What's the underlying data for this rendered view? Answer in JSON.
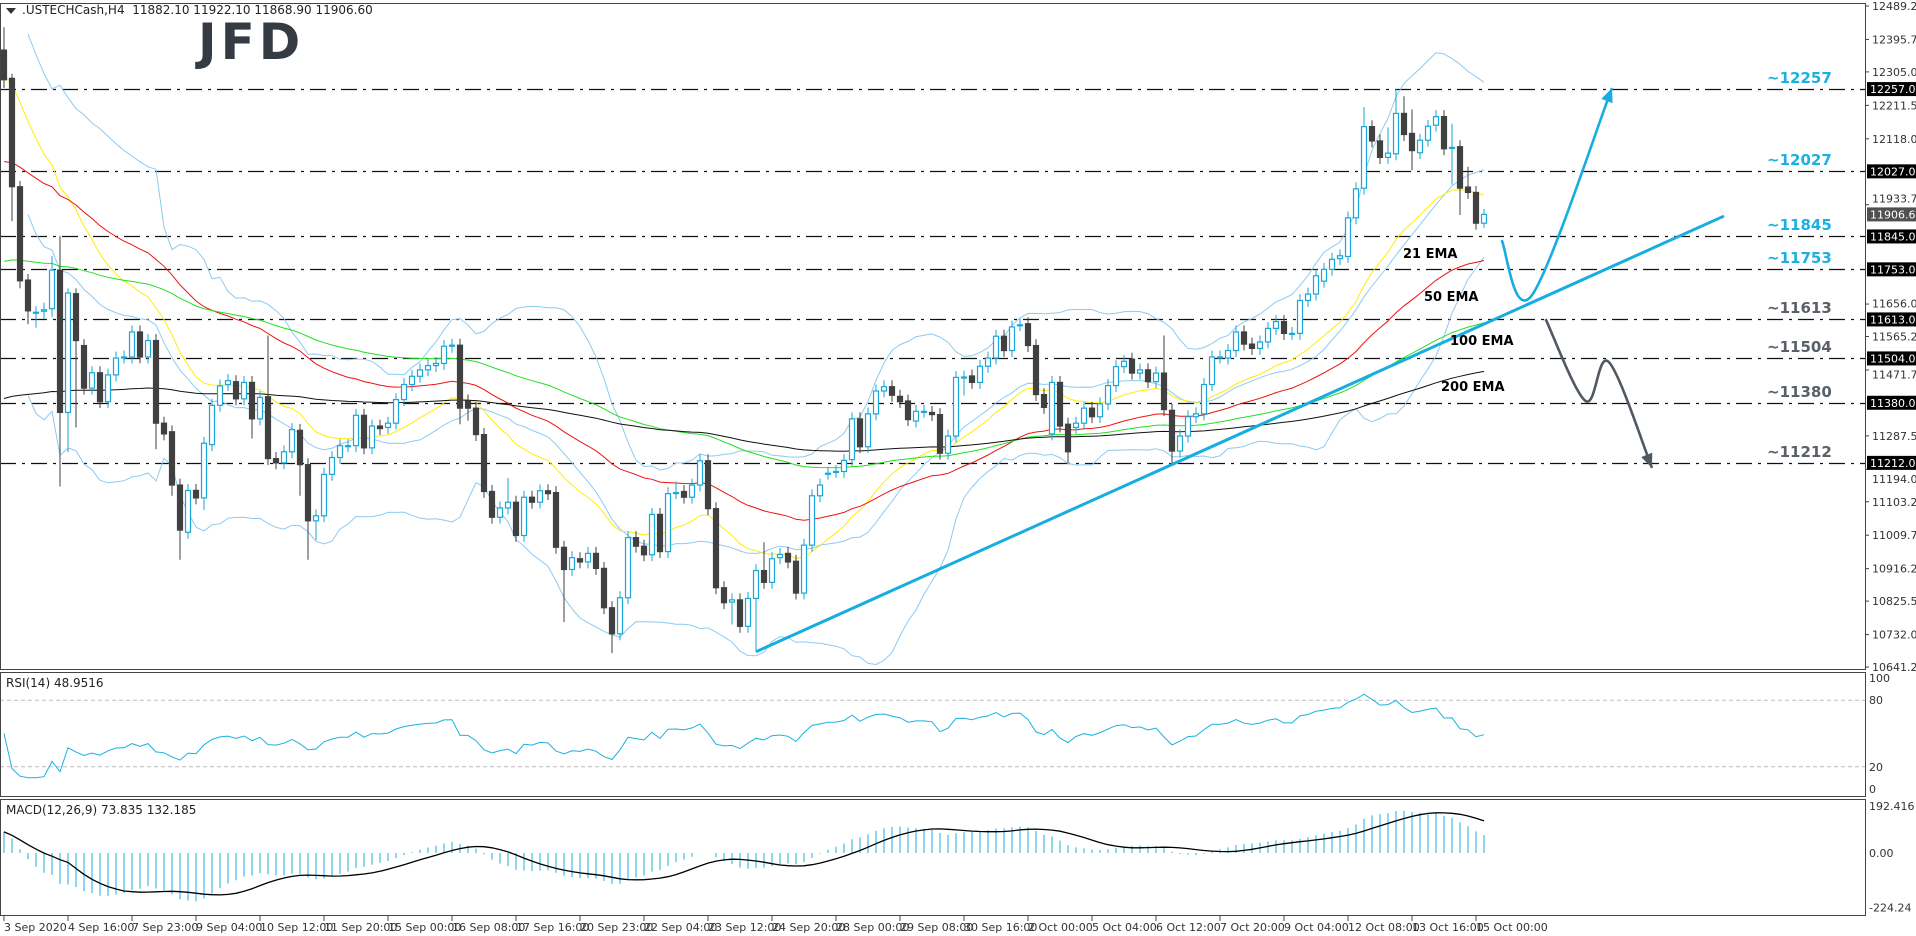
{
  "header": {
    "symbol": ".USTECHCash,H4",
    "ohlc": "11882.10 11922.10 11868.90 11906.60"
  },
  "logo": "JFD",
  "colors": {
    "bull": "#1aa6d8",
    "bear": "#404040",
    "bands": "#8ccbf2",
    "trend": "#17ade0",
    "bearish_path": "#505862",
    "ema21": "#ffee00",
    "ema50": "#ee1111",
    "ema100": "#22e022",
    "ema200": "#111111"
  },
  "levels": [
    {
      "value": 12257,
      "label": "~12257",
      "axis_label": "12257.00",
      "color": "#1ab0e0"
    },
    {
      "value": 12027,
      "label": "~12027",
      "axis_label": "12027.00",
      "color": "#1ab0e0"
    },
    {
      "value": 11845,
      "label": "~11845",
      "axis_label": "11845.00",
      "color": "#1ab0e0"
    },
    {
      "value": 11753,
      "label": "~11753",
      "axis_label": "11753.00",
      "color": "#1ab0e0"
    },
    {
      "value": 11613,
      "label": "~11613",
      "axis_label": "11613.00",
      "color": "#5a6068"
    },
    {
      "value": 11504,
      "label": "~11504",
      "axis_label": "11504.00",
      "color": "#5a6068"
    },
    {
      "value": 11380,
      "label": "~11380",
      "axis_label": "11380.00",
      "color": "#5a6068"
    },
    {
      "value": 11212,
      "label": "~11212",
      "axis_label": "11212.00",
      "color": "#5a6068"
    }
  ],
  "current_price": {
    "value": 11906.6,
    "label": "11906.60"
  },
  "ema_labels": [
    {
      "label": "21 EMA",
      "color": "#f7c600"
    },
    {
      "label": "50 EMA",
      "color": "#e81010"
    },
    {
      "label": "100 EMA",
      "color": "#22e022"
    },
    {
      "label": "200 EMA",
      "color": "#111111"
    }
  ],
  "price_axis_ticks": [
    "12489.25",
    "12395.75",
    "12305.00",
    "12211.50",
    "12118.00",
    "11933.75",
    "11656.00",
    "11565.25",
    "11471.75",
    "11287.50",
    "11194.00",
    "11103.25",
    "11009.75",
    "10916.25",
    "10825.50",
    "10732.00",
    "10641.25"
  ],
  "time_axis": [
    "3 Sep 2020",
    "4 Sep 16:00",
    "7 Sep 23:00",
    "9 Sep 04:00",
    "10 Sep 12:00",
    "11 Sep 20:00",
    "15 Sep 00:00",
    "16 Sep 08:00",
    "17 Sep 16:00",
    "20 Sep 23:00",
    "22 Sep 04:00",
    "23 Sep 12:00",
    "24 Sep 20:00",
    "28 Sep 00:00",
    "29 Sep 08:00",
    "30 Sep 16:00",
    "2 Oct 00:00",
    "5 Oct 04:00",
    "6 Oct 12:00",
    "7 Oct 20:00",
    "9 Oct 04:00",
    "12 Oct 08:00",
    "13 Oct 16:00",
    "15 Oct 00:00"
  ],
  "rsi": {
    "label": "RSI(14) 48.9516",
    "ticks": [
      "100",
      "80",
      "20",
      "0"
    ],
    "levels": [
      80,
      20
    ]
  },
  "macd": {
    "label": "MACD(12,26,9) 73.835 132.185",
    "ticks": [
      "192.416",
      "0.00",
      "-224.24"
    ]
  },
  "chart_data": {
    "type": "candlestick",
    "timeframe": "H4",
    "ylim": [
      10641.25,
      12489.25
    ],
    "grid": false,
    "indicators": [
      "EMA 21",
      "EMA 50",
      "EMA 100",
      "EMA 200",
      "Bollinger Bands",
      "RSI(14)",
      "MACD(12,26,9)"
    ],
    "trendline": {
      "from": {
        "bar": 94,
        "price": 10684
      },
      "to": {
        "bar": 215,
        "price": 11902
      }
    },
    "scenario_up": [
      {
        "bar": 187.2,
        "price": 11835
      },
      {
        "bar": 191,
        "price": 11681
      },
      {
        "bar": 201,
        "price": 12260
      }
    ],
    "scenario_down": [
      {
        "bar": 192.7,
        "price": 11614
      },
      {
        "bar": 197.7,
        "price": 11385
      },
      {
        "bar": 200.6,
        "price": 11494
      },
      {
        "bar": 206,
        "price": 11198
      }
    ],
    "ohlc": [
      [
        12366,
        12430,
        12260,
        12283
      ],
      [
        12287,
        12300,
        11888,
        11984
      ],
      [
        11984,
        12000,
        11700,
        11721
      ],
      [
        11723,
        11740,
        11600,
        11637
      ],
      [
        11633,
        11650,
        11590,
        11633
      ],
      [
        11636,
        11660,
        11615,
        11640
      ],
      [
        11643,
        11790,
        11620,
        11751
      ],
      [
        11751,
        11846,
        11146,
        11353
      ],
      [
        11353,
        11700,
        11242,
        11687
      ],
      [
        11685,
        11700,
        11311,
        11554
      ],
      [
        11540,
        11558,
        11403,
        11421
      ],
      [
        11421,
        11482,
        11403,
        11464
      ],
      [
        11464,
        11482,
        11365,
        11383
      ],
      [
        11383,
        11476,
        11365,
        11458
      ],
      [
        11458,
        11523,
        11440,
        11505
      ],
      [
        11508,
        11526,
        11490,
        11508
      ],
      [
        11508,
        11596,
        11490,
        11578
      ],
      [
        11578,
        11596,
        11490,
        11508
      ],
      [
        11508,
        11572,
        11490,
        11554
      ],
      [
        11554,
        11572,
        11250,
        11323
      ],
      [
        11323,
        11341,
        11275,
        11293
      ],
      [
        11299,
        11317,
        11120,
        11150
      ],
      [
        11150,
        11168,
        10941,
        11024
      ],
      [
        11018,
        11153,
        11000,
        11135
      ],
      [
        11135,
        11153,
        11096,
        11114
      ],
      [
        11114,
        11285,
        11080,
        11267
      ],
      [
        11263,
        11391,
        11245,
        11373
      ],
      [
        11373,
        11445,
        11355,
        11427
      ],
      [
        11431,
        11460,
        11413,
        11442
      ],
      [
        11439,
        11457,
        11373,
        11391
      ],
      [
        11391,
        11455,
        11373,
        11437
      ],
      [
        11437,
        11455,
        11280,
        11335
      ],
      [
        11335,
        11413,
        11317,
        11395
      ],
      [
        11397,
        11568,
        11206,
        11224
      ],
      [
        11224,
        11242,
        11194,
        11212
      ],
      [
        11212,
        11261,
        11194,
        11243
      ],
      [
        11243,
        11323,
        11225,
        11305
      ],
      [
        11303,
        11321,
        11120,
        11207
      ],
      [
        11207,
        11225,
        10941,
        11050
      ],
      [
        11050,
        11082,
        10996,
        11064
      ],
      [
        11064,
        11198,
        11046,
        11180
      ],
      [
        11180,
        11245,
        11162,
        11227
      ],
      [
        11227,
        11278,
        11209,
        11260
      ],
      [
        11260,
        11278,
        11242,
        11260
      ],
      [
        11260,
        11363,
        11242,
        11345
      ],
      [
        11345,
        11363,
        11236,
        11254
      ],
      [
        11254,
        11333,
        11236,
        11315
      ],
      [
        11315,
        11333,
        11290,
        11308
      ],
      [
        11311,
        11341,
        11293,
        11323
      ],
      [
        11323,
        11407,
        11305,
        11389
      ],
      [
        11389,
        11449,
        11371,
        11431
      ],
      [
        11431,
        11472,
        11413,
        11454
      ],
      [
        11454,
        11490,
        11436,
        11472
      ],
      [
        11472,
        11502,
        11454,
        11484
      ],
      [
        11484,
        11508,
        11466,
        11490
      ],
      [
        11490,
        11556,
        11472,
        11538
      ],
      [
        11538,
        11559,
        11520,
        11541
      ],
      [
        11541,
        11559,
        11320,
        11365
      ],
      [
        11385,
        11403,
        11330,
        11365
      ],
      [
        11365,
        11383,
        11273,
        11291
      ],
      [
        11291,
        11309,
        11114,
        11132
      ],
      [
        11132,
        11150,
        11042,
        11060
      ],
      [
        11060,
        11104,
        11042,
        11086
      ],
      [
        11086,
        11170,
        11068,
        11102
      ],
      [
        11102,
        11120,
        10991,
        11009
      ],
      [
        11009,
        11134,
        10991,
        11116
      ],
      [
        11116,
        11134,
        11084,
        11102
      ],
      [
        11102,
        11152,
        11084,
        11134
      ],
      [
        11134,
        11152,
        11108,
        11126
      ],
      [
        11129,
        11147,
        10958,
        10976
      ],
      [
        10976,
        10994,
        10767,
        10914
      ],
      [
        10914,
        10965,
        10896,
        10947
      ],
      [
        10944,
        10962,
        10917,
        10935
      ],
      [
        10935,
        10977,
        10917,
        10959
      ],
      [
        10959,
        10977,
        10899,
        10917
      ],
      [
        10917,
        10935,
        10789,
        10807
      ],
      [
        10807,
        10825,
        10680,
        10734
      ],
      [
        10734,
        10853,
        10716,
        10835
      ],
      [
        10835,
        11021,
        10817,
        11003
      ],
      [
        11003,
        11021,
        10961,
        10979
      ],
      [
        10979,
        10997,
        10937,
        10955
      ],
      [
        10955,
        11086,
        10937,
        11068
      ],
      [
        11068,
        11086,
        10946,
        10964
      ],
      [
        10964,
        11144,
        10946,
        11126
      ],
      [
        11129,
        11160,
        11111,
        11129
      ],
      [
        11132,
        11150,
        11098,
        11116
      ],
      [
        11116,
        11168,
        11098,
        11150
      ],
      [
        11150,
        11236,
        11132,
        11218
      ],
      [
        11218,
        11236,
        11066,
        11084
      ],
      [
        11084,
        11102,
        10845,
        10863
      ],
      [
        10863,
        10881,
        10803,
        10821
      ],
      [
        10823,
        10847,
        10760,
        10829
      ],
      [
        10829,
        10847,
        10737,
        10755
      ],
      [
        10755,
        10851,
        10737,
        10833
      ],
      [
        10833,
        10929,
        10684,
        10911
      ],
      [
        10911,
        10990,
        10860,
        10878
      ],
      [
        10878,
        10962,
        10860,
        10944
      ],
      [
        10947,
        10974,
        10929,
        10956
      ],
      [
        10959,
        10977,
        10917,
        10935
      ],
      [
        10937,
        10955,
        10830,
        10848
      ],
      [
        10848,
        11000,
        10830,
        10982
      ],
      [
        10982,
        11138,
        10964,
        11120
      ],
      [
        11120,
        11168,
        11102,
        11150
      ],
      [
        11183,
        11201,
        11165,
        11183
      ],
      [
        11188,
        11206,
        11170,
        11188
      ],
      [
        11188,
        11237,
        11170,
        11219
      ],
      [
        11221,
        11353,
        11203,
        11335
      ],
      [
        11335,
        11353,
        11239,
        11257
      ],
      [
        11257,
        11367,
        11239,
        11349
      ],
      [
        11349,
        11431,
        11331,
        11413
      ],
      [
        11413,
        11443,
        11395,
        11425
      ],
      [
        11425,
        11443,
        11383,
        11401
      ],
      [
        11398,
        11416,
        11365,
        11383
      ],
      [
        11385,
        11403,
        11315,
        11333
      ],
      [
        11329,
        11374,
        11311,
        11356
      ],
      [
        11356,
        11374,
        11338,
        11356
      ],
      [
        11353,
        11371,
        11329,
        11347
      ],
      [
        11347,
        11365,
        11221,
        11239
      ],
      [
        11239,
        11305,
        11221,
        11287
      ],
      [
        11287,
        11469,
        11269,
        11451
      ],
      [
        11452,
        11470,
        11400,
        11452
      ],
      [
        11455,
        11473,
        11419,
        11437
      ],
      [
        11437,
        11500,
        11419,
        11482
      ],
      [
        11482,
        11523,
        11464,
        11505
      ],
      [
        11505,
        11584,
        11487,
        11566
      ],
      [
        11566,
        11584,
        11508,
        11526
      ],
      [
        11526,
        11610,
        11508,
        11592
      ],
      [
        11598,
        11616,
        11580,
        11598
      ],
      [
        11601,
        11619,
        11522,
        11540
      ],
      [
        11540,
        11558,
        11385,
        11403
      ],
      [
        11403,
        11421,
        11349,
        11367
      ],
      [
        11293,
        11455,
        11275,
        11437
      ],
      [
        11437,
        11455,
        11297,
        11315
      ],
      [
        11320,
        11338,
        11212,
        11243
      ],
      [
        11311,
        11341,
        11293,
        11323
      ],
      [
        11323,
        11383,
        11305,
        11365
      ],
      [
        11365,
        11383,
        11323,
        11341
      ],
      [
        11341,
        11395,
        11323,
        11377
      ],
      [
        11377,
        11446,
        11359,
        11428
      ],
      [
        11428,
        11499,
        11410,
        11481
      ],
      [
        11481,
        11514,
        11463,
        11496
      ],
      [
        11502,
        11520,
        11445,
        11463
      ],
      [
        11463,
        11490,
        11445,
        11472
      ],
      [
        11472,
        11490,
        11421,
        11439
      ],
      [
        11439,
        11481,
        11421,
        11463
      ],
      [
        11463,
        11568,
        11343,
        11361
      ],
      [
        11359,
        11377,
        11212,
        11245
      ],
      [
        11245,
        11305,
        11227,
        11287
      ],
      [
        11287,
        11359,
        11269,
        11341
      ],
      [
        11341,
        11367,
        11323,
        11349
      ],
      [
        11349,
        11449,
        11331,
        11431
      ],
      [
        11431,
        11526,
        11413,
        11508
      ],
      [
        11508,
        11526,
        11490,
        11508
      ],
      [
        11505,
        11544,
        11487,
        11526
      ],
      [
        11526,
        11596,
        11508,
        11578
      ],
      [
        11578,
        11596,
        11526,
        11544
      ],
      [
        11544,
        11562,
        11514,
        11532
      ],
      [
        11532,
        11568,
        11514,
        11550
      ],
      [
        11550,
        11606,
        11532,
        11588
      ],
      [
        11588,
        11625,
        11570,
        11607
      ],
      [
        11607,
        11625,
        11556,
        11574
      ],
      [
        11574,
        11592,
        11556,
        11574
      ],
      [
        11574,
        11684,
        11556,
        11666
      ],
      [
        11666,
        11702,
        11648,
        11684
      ],
      [
        11684,
        11753,
        11666,
        11735
      ],
      [
        11720,
        11771,
        11702,
        11753
      ],
      [
        11753,
        11799,
        11735,
        11781
      ],
      [
        11783,
        11809,
        11765,
        11791
      ],
      [
        11789,
        11915,
        11771,
        11897
      ],
      [
        11897,
        11996,
        11879,
        11978
      ],
      [
        11980,
        12207,
        11962,
        12152
      ],
      [
        12152,
        12170,
        12094,
        12112
      ],
      [
        12112,
        12130,
        12048,
        12066
      ],
      [
        12066,
        12150,
        12048,
        12078
      ],
      [
        12076,
        12257,
        12058,
        12189
      ],
      [
        12189,
        12237,
        12112,
        12130
      ],
      [
        12133,
        12200,
        12030,
        12085
      ],
      [
        12079,
        12132,
        12061,
        12114
      ],
      [
        12114,
        12171,
        12096,
        12153
      ],
      [
        12156,
        12198,
        12138,
        12180
      ],
      [
        12180,
        12198,
        12072,
        12090
      ],
      [
        12094,
        12160,
        11990,
        12094
      ],
      [
        12096,
        12114,
        11905,
        11980
      ],
      [
        11983,
        12040,
        11950,
        11968
      ],
      [
        11968,
        11986,
        11864,
        11882
      ],
      [
        11882.1,
        11922.1,
        11868.9,
        11906.6
      ]
    ]
  }
}
